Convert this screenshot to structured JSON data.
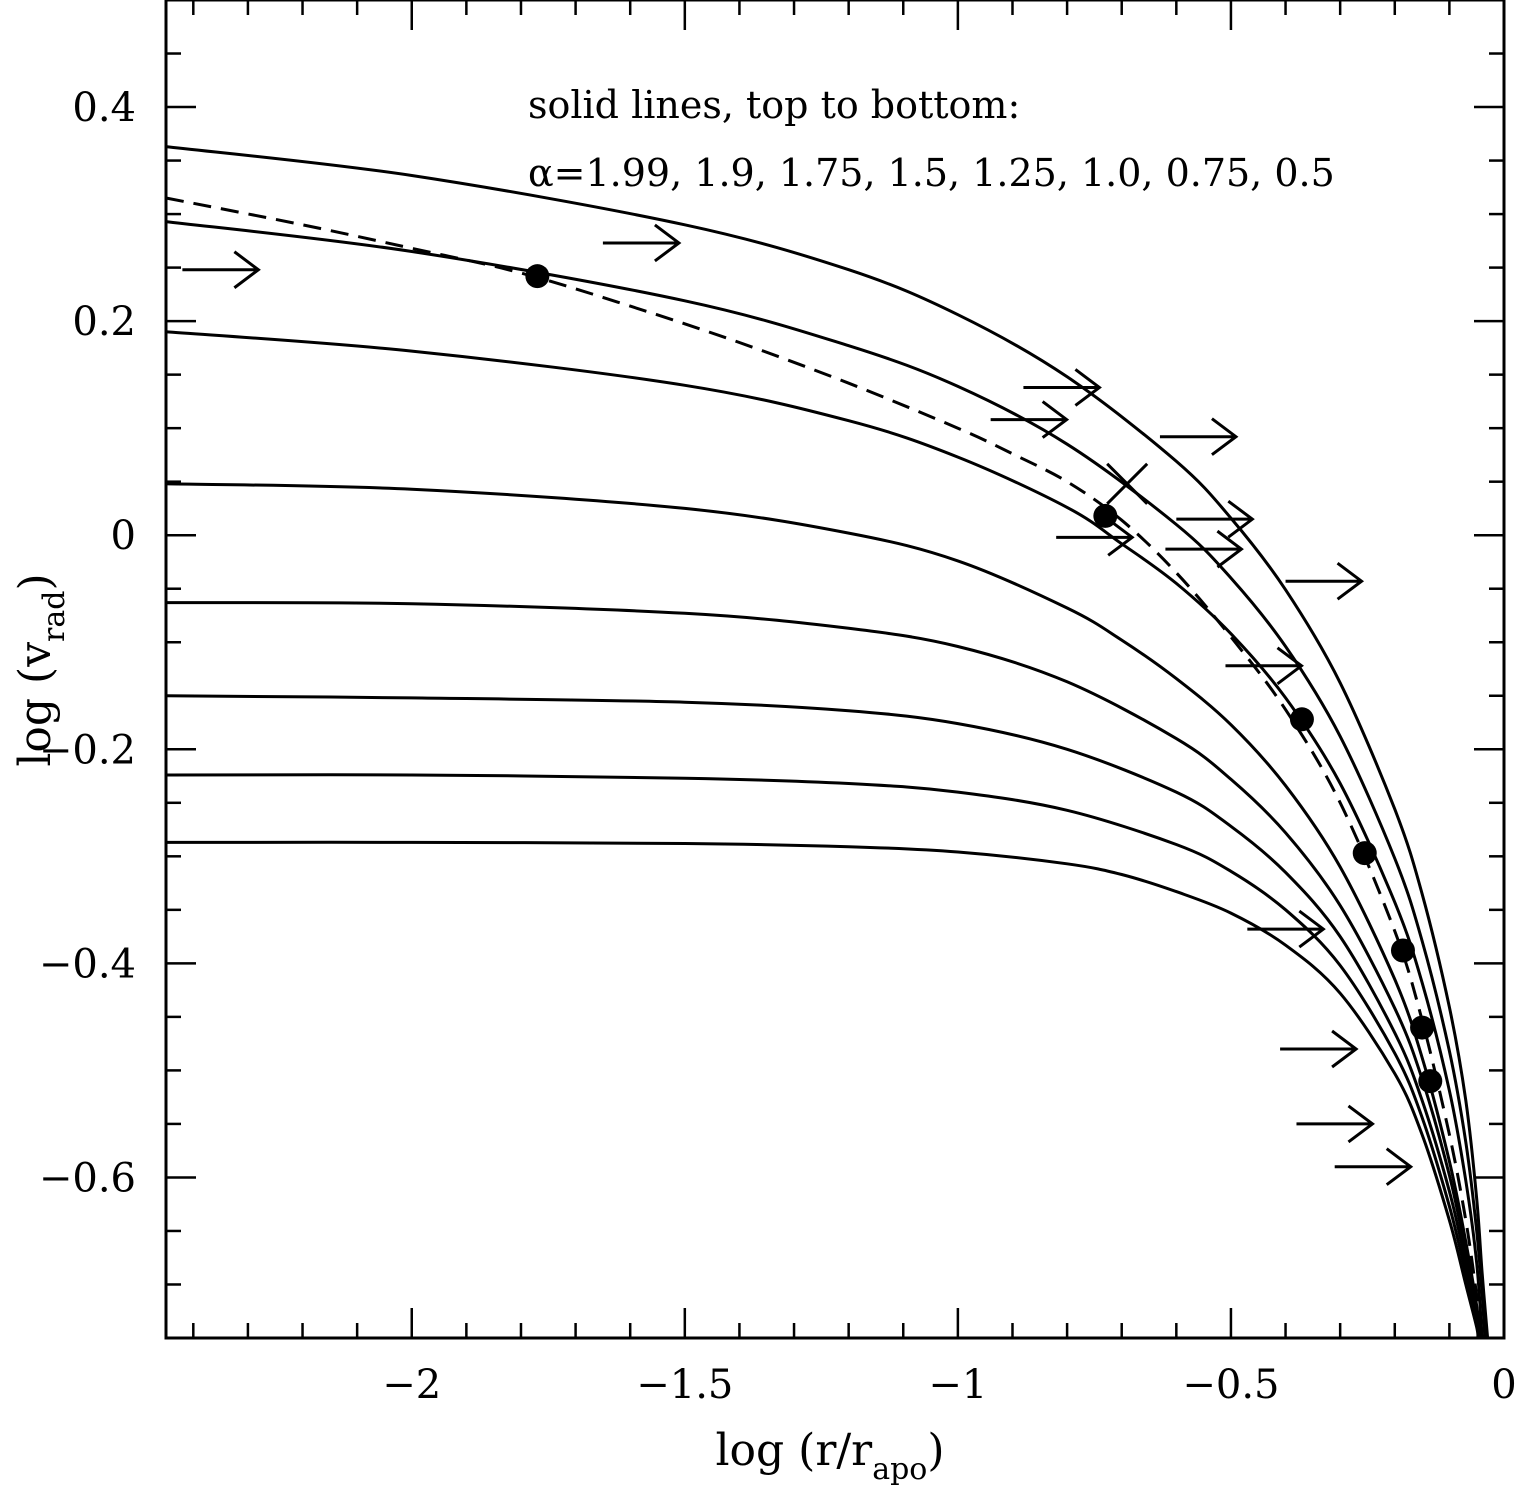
{
  "chart_data": {
    "type": "line",
    "xlabel": {
      "base": "log (r/r",
      "subscript": "apo",
      "suffix": ")"
    },
    "ylabel": {
      "base": "log (v",
      "subscript": "rad",
      "suffix": ")"
    },
    "xlim": [
      -2.45,
      0.0
    ],
    "ylim": [
      -0.75,
      0.5
    ],
    "x_ticks": [
      -2,
      -1.5,
      -1,
      -0.5,
      0
    ],
    "x_tick_labels": [
      "−2",
      "−1.5",
      "−1",
      "−0.5",
      "0"
    ],
    "y_ticks": [
      -0.6,
      -0.4,
      -0.2,
      0,
      0.2,
      0.4
    ],
    "y_tick_labels": [
      "−0.6",
      "−0.4",
      "−0.2",
      "0",
      "0.2",
      "0.4"
    ],
    "annotation_lines": [
      "solid lines, top to bottom:",
      "α=1.99, 1.9, 1.75, 1.5, 1.25, 1.0, 0.75, 0.5"
    ],
    "series": [
      {
        "style": "solid",
        "points": [
          [
            -2.45,
            0.363
          ],
          [
            -2.0,
            0.336
          ],
          [
            -1.5,
            0.29
          ],
          [
            -1.2,
            0.248
          ],
          [
            -1.0,
            0.206
          ],
          [
            -0.8,
            0.148
          ],
          [
            -0.6,
            0.069
          ],
          [
            -0.5,
            0.016
          ],
          [
            -0.4,
            -0.051
          ],
          [
            -0.3,
            -0.138
          ],
          [
            -0.2,
            -0.256
          ],
          [
            -0.15,
            -0.335
          ],
          [
            -0.1,
            -0.441
          ],
          [
            -0.07,
            -0.528
          ],
          [
            -0.05,
            -0.62
          ],
          [
            -0.04,
            -0.69
          ],
          [
            -0.03,
            -0.75
          ]
        ]
      },
      {
        "style": "solid",
        "points": [
          [
            -2.45,
            0.293
          ],
          [
            -2.0,
            0.265
          ],
          [
            -1.5,
            0.219
          ],
          [
            -1.2,
            0.177
          ],
          [
            -1.0,
            0.139
          ],
          [
            -0.8,
            0.085
          ],
          [
            -0.6,
            0.01
          ],
          [
            -0.5,
            -0.04
          ],
          [
            -0.4,
            -0.104
          ],
          [
            -0.3,
            -0.188
          ],
          [
            -0.2,
            -0.302
          ],
          [
            -0.15,
            -0.379
          ],
          [
            -0.1,
            -0.482
          ],
          [
            -0.07,
            -0.567
          ],
          [
            -0.05,
            -0.65
          ],
          [
            -0.04,
            -0.71
          ],
          [
            -0.035,
            -0.75
          ]
        ]
      },
      {
        "style": "solid",
        "points": [
          [
            -2.45,
            0.19
          ],
          [
            -2.0,
            0.172
          ],
          [
            -1.5,
            0.14
          ],
          [
            -1.2,
            0.107
          ],
          [
            -1.0,
            0.073
          ],
          [
            -0.8,
            0.026
          ],
          [
            -0.7,
            -0.008
          ],
          [
            -0.6,
            -0.045
          ],
          [
            -0.5,
            -0.092
          ],
          [
            -0.4,
            -0.152
          ],
          [
            -0.3,
            -0.232
          ],
          [
            -0.2,
            -0.343
          ],
          [
            -0.15,
            -0.418
          ],
          [
            -0.1,
            -0.519
          ],
          [
            -0.07,
            -0.603
          ],
          [
            -0.05,
            -0.68
          ],
          [
            -0.04,
            -0.75
          ]
        ]
      },
      {
        "style": "solid",
        "points": [
          [
            -2.45,
            0.048
          ],
          [
            -2.0,
            0.043
          ],
          [
            -1.5,
            0.025
          ],
          [
            -1.2,
            0.002
          ],
          [
            -1.0,
            -0.024
          ],
          [
            -0.8,
            -0.068
          ],
          [
            -0.7,
            -0.098
          ],
          [
            -0.6,
            -0.134
          ],
          [
            -0.5,
            -0.177
          ],
          [
            -0.4,
            -0.234
          ],
          [
            -0.3,
            -0.31
          ],
          [
            -0.2,
            -0.415
          ],
          [
            -0.15,
            -0.488
          ],
          [
            -0.1,
            -0.585
          ],
          [
            -0.07,
            -0.66
          ],
          [
            -0.05,
            -0.72
          ],
          [
            -0.043,
            -0.75
          ]
        ]
      },
      {
        "style": "solid",
        "points": [
          [
            -2.45,
            -0.063
          ],
          [
            -2.0,
            -0.064
          ],
          [
            -1.5,
            -0.073
          ],
          [
            -1.2,
            -0.087
          ],
          [
            -1.0,
            -0.104
          ],
          [
            -0.8,
            -0.137
          ],
          [
            -0.6,
            -0.19
          ],
          [
            -0.5,
            -0.228
          ],
          [
            -0.4,
            -0.278
          ],
          [
            -0.3,
            -0.346
          ],
          [
            -0.2,
            -0.442
          ],
          [
            -0.15,
            -0.508
          ],
          [
            -0.1,
            -0.598
          ],
          [
            -0.07,
            -0.67
          ],
          [
            -0.05,
            -0.725
          ],
          [
            -0.045,
            -0.75
          ]
        ]
      },
      {
        "style": "solid",
        "points": [
          [
            -2.45,
            -0.15
          ],
          [
            -2.0,
            -0.152
          ],
          [
            -1.5,
            -0.156
          ],
          [
            -1.2,
            -0.164
          ],
          [
            -1.0,
            -0.176
          ],
          [
            -0.8,
            -0.2
          ],
          [
            -0.6,
            -0.24
          ],
          [
            -0.5,
            -0.272
          ],
          [
            -0.4,
            -0.315
          ],
          [
            -0.3,
            -0.375
          ],
          [
            -0.2,
            -0.465
          ],
          [
            -0.15,
            -0.528
          ],
          [
            -0.1,
            -0.613
          ],
          [
            -0.07,
            -0.68
          ],
          [
            -0.05,
            -0.73
          ],
          [
            -0.046,
            -0.75
          ]
        ]
      },
      {
        "style": "solid",
        "points": [
          [
            -2.45,
            -0.224
          ],
          [
            -2.0,
            -0.224
          ],
          [
            -1.5,
            -0.227
          ],
          [
            -1.2,
            -0.232
          ],
          [
            -1.0,
            -0.24
          ],
          [
            -0.8,
            -0.257
          ],
          [
            -0.6,
            -0.289
          ],
          [
            -0.5,
            -0.314
          ],
          [
            -0.4,
            -0.35
          ],
          [
            -0.3,
            -0.402
          ],
          [
            -0.2,
            -0.484
          ],
          [
            -0.15,
            -0.544
          ],
          [
            -0.1,
            -0.627
          ],
          [
            -0.07,
            -0.69
          ],
          [
            -0.05,
            -0.735
          ],
          [
            -0.047,
            -0.75
          ]
        ]
      },
      {
        "style": "solid",
        "points": [
          [
            -2.45,
            -0.287
          ],
          [
            -2.0,
            -0.287
          ],
          [
            -1.5,
            -0.288
          ],
          [
            -1.2,
            -0.291
          ],
          [
            -1.0,
            -0.296
          ],
          [
            -0.8,
            -0.307
          ],
          [
            -0.7,
            -0.317
          ],
          [
            -0.6,
            -0.333
          ],
          [
            -0.5,
            -0.353
          ],
          [
            -0.4,
            -0.383
          ],
          [
            -0.3,
            -0.428
          ],
          [
            -0.2,
            -0.503
          ],
          [
            -0.15,
            -0.56
          ],
          [
            -0.1,
            -0.64
          ],
          [
            -0.07,
            -0.7
          ],
          [
            -0.05,
            -0.74
          ],
          [
            -0.048,
            -0.75
          ]
        ]
      },
      {
        "style": "dashed",
        "points": [
          [
            -2.45,
            0.315
          ],
          [
            -2.2,
            0.29
          ],
          [
            -2.0,
            0.268
          ],
          [
            -1.8,
            0.245
          ],
          [
            -1.6,
            0.214
          ],
          [
            -1.4,
            0.18
          ],
          [
            -1.2,
            0.142
          ],
          [
            -1.0,
            0.1
          ],
          [
            -0.9,
            0.076
          ],
          [
            -0.8,
            0.05
          ],
          [
            -0.7,
            0.014
          ],
          [
            -0.6,
            -0.035
          ],
          [
            -0.5,
            -0.095
          ],
          [
            -0.4,
            -0.163
          ],
          [
            -0.3,
            -0.25
          ],
          [
            -0.2,
            -0.37
          ],
          [
            -0.15,
            -0.453
          ],
          [
            -0.1,
            -0.56
          ],
          [
            -0.07,
            -0.64
          ],
          [
            -0.05,
            -0.71
          ],
          [
            -0.04,
            -0.75
          ]
        ]
      }
    ],
    "points": [
      {
        "x": -1.77,
        "y": 0.242
      },
      {
        "x": -0.73,
        "y": 0.018
      },
      {
        "x": -0.37,
        "y": -0.172
      },
      {
        "x": -0.255,
        "y": -0.297
      },
      {
        "x": -0.185,
        "y": -0.388
      },
      {
        "x": -0.15,
        "y": -0.46
      },
      {
        "x": -0.135,
        "y": -0.51
      }
    ],
    "lower_limit_arrows": [
      {
        "x": -2.42,
        "y": 0.248
      },
      {
        "x": -1.65,
        "y": 0.273
      },
      {
        "x": -0.88,
        "y": 0.138
      },
      {
        "x": -0.94,
        "y": 0.108
      },
      {
        "x": -0.63,
        "y": 0.092
      },
      {
        "x": -0.6,
        "y": 0.015
      },
      {
        "x": -0.82,
        "y": -0.002
      },
      {
        "x": -0.62,
        "y": -0.013
      },
      {
        "x": -0.4,
        "y": -0.043
      },
      {
        "x": -0.51,
        "y": -0.122
      },
      {
        "x": -0.47,
        "y": -0.368
      },
      {
        "x": -0.41,
        "y": -0.48
      },
      {
        "x": -0.38,
        "y": -0.55
      },
      {
        "x": -0.31,
        "y": -0.59
      }
    ],
    "cross_markers": [
      {
        "x": -0.69,
        "y": 0.048
      }
    ]
  }
}
